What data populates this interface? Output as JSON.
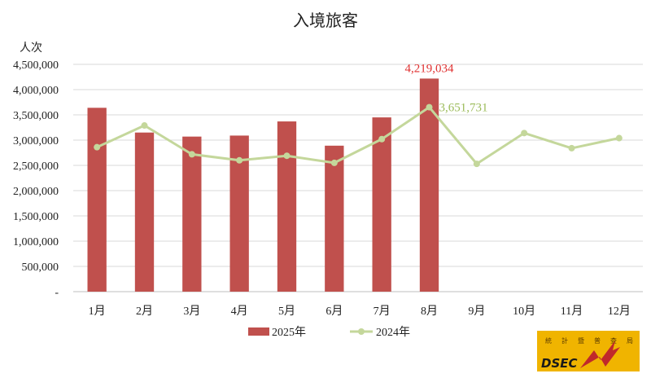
{
  "chart_data": {
    "type": "bar",
    "title": "入境旅客",
    "ylabel": "人次",
    "xlabel": "",
    "categories": [
      "1月",
      "2月",
      "3月",
      "4月",
      "5月",
      "6月",
      "7月",
      "8月",
      "9月",
      "10月",
      "11月",
      "12月"
    ],
    "ylim": [
      0,
      4500000
    ],
    "yticks": [
      {
        "value": 0,
        "label": "-"
      },
      {
        "value": 500000,
        "label": "500,000"
      },
      {
        "value": 1000000,
        "label": "1,000,000"
      },
      {
        "value": 1500000,
        "label": "1,500,000"
      },
      {
        "value": 2000000,
        "label": "2,000,000"
      },
      {
        "value": 2500000,
        "label": "2,500,000"
      },
      {
        "value": 3000000,
        "label": "3,000,000"
      },
      {
        "value": 3500000,
        "label": "3,500,000"
      },
      {
        "value": 4000000,
        "label": "4,000,000"
      },
      {
        "value": 4500000,
        "label": "4,500,000"
      }
    ],
    "grid": true,
    "legend_position": "bottom",
    "series": [
      {
        "name": "2025年",
        "type": "bar",
        "color": "#c0504d",
        "values": [
          3640000,
          3150000,
          3070000,
          3090000,
          3370000,
          2890000,
          3450000,
          4219034,
          null,
          null,
          null,
          null
        ]
      },
      {
        "name": "2024年",
        "type": "line",
        "color": "#c4d79b",
        "values": [
          2860000,
          3290000,
          2720000,
          2600000,
          2690000,
          2550000,
          3020000,
          3651731,
          2530000,
          3140000,
          2840000,
          3040000
        ]
      }
    ],
    "annotations": [
      {
        "series": 0,
        "index": 7,
        "text": "4,219,034",
        "color": "#e03030"
      },
      {
        "series": 1,
        "index": 7,
        "text": "3,651,731",
        "color": "#9bbb59"
      }
    ]
  },
  "logo": {
    "text": "DSEC",
    "chars": [
      "統",
      "計",
      "暨",
      "普",
      "查",
      "局"
    ],
    "background": "#f0b400"
  }
}
